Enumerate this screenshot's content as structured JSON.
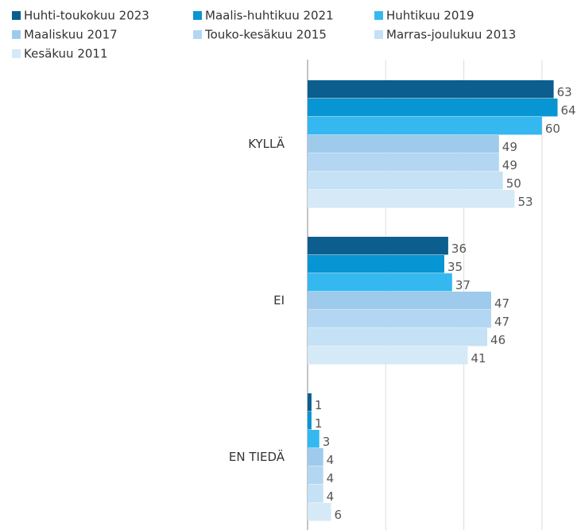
{
  "chart_data": {
    "type": "hbar",
    "categories": [
      "KYLLÄ",
      "EI",
      "EN TIEDÄ"
    ],
    "series": [
      {
        "name": "Huhti-toukokuu 2023",
        "color": "#0b5e8e",
        "values": [
          63,
          36,
          1
        ]
      },
      {
        "name": "Maalis-huhtikuu 2021",
        "color": "#0795d3",
        "values": [
          64,
          35,
          1
        ]
      },
      {
        "name": "Huhtikuu 2019",
        "color": "#35b8ef",
        "values": [
          60,
          37,
          3
        ]
      },
      {
        "name": "Maaliskuu 2017",
        "color": "#9ecbeb",
        "values": [
          49,
          47,
          4
        ]
      },
      {
        "name": "Touko-kesäkuu 2015",
        "color": "#b3d7f2",
        "values": [
          49,
          47,
          4
        ]
      },
      {
        "name": "Marras-joulukuu 2013",
        "color": "#c5e1f5",
        "values": [
          50,
          46,
          4
        ]
      },
      {
        "name": "Kesäkuu 2011",
        "color": "#d5e9f7",
        "values": [
          53,
          41,
          6
        ]
      }
    ],
    "xlim": [
      0,
      70
    ],
    "xticks": [
      0,
      20,
      40,
      60
    ],
    "grid": true
  }
}
